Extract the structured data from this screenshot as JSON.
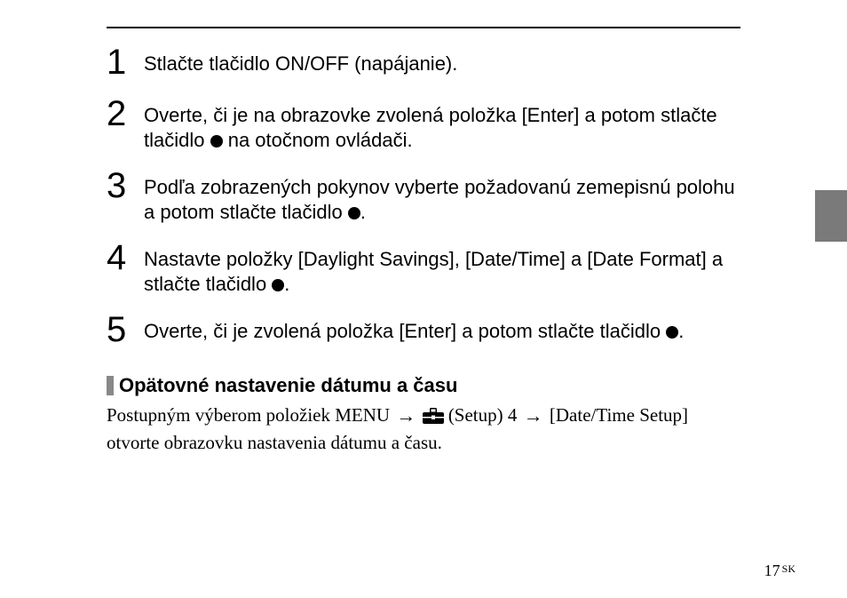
{
  "steps": [
    {
      "num": "1",
      "parts": [
        {
          "t": "text",
          "v": "Stlačte tlačidlo ON/OFF (napájanie)."
        }
      ]
    },
    {
      "num": "2",
      "parts": [
        {
          "t": "text",
          "v": "Overte, či je na obrazovke zvolená položka [Enter] a potom stlačte tlačidlo "
        },
        {
          "t": "dot"
        },
        {
          "t": "text",
          "v": " na otočnom ovládači."
        }
      ]
    },
    {
      "num": "3",
      "parts": [
        {
          "t": "text",
          "v": "Podľa zobrazených pokynov vyberte požadovanú zemepisnú polohu a potom stlačte tlačidlo "
        },
        {
          "t": "dot"
        },
        {
          "t": "text",
          "v": "."
        }
      ]
    },
    {
      "num": "4",
      "parts": [
        {
          "t": "text",
          "v": "Nastavte položky [Daylight Savings], [Date/Time] a [Date Format] a stlačte tlačidlo "
        },
        {
          "t": "dot"
        },
        {
          "t": "text",
          "v": "."
        }
      ]
    },
    {
      "num": "5",
      "parts": [
        {
          "t": "text",
          "v": "Overte, či je zvolená položka [Enter] a potom stlačte tlačidlo "
        },
        {
          "t": "dot"
        },
        {
          "t": "text",
          "v": "."
        }
      ]
    }
  ],
  "subheading": "Opätovné nastavenie dátumu a času",
  "body_parts": [
    {
      "t": "text",
      "v": "Postupným výberom položiek MENU "
    },
    {
      "t": "arrow"
    },
    {
      "t": "text",
      "v": " "
    },
    {
      "t": "toolbox"
    },
    {
      "t": "text",
      "v": " (Setup) 4 "
    },
    {
      "t": "arrow"
    },
    {
      "t": "text",
      "v": " [Date/Time Setup] otvorte obrazovku nastavenia dátumu a času."
    }
  ],
  "page_number": "17",
  "page_suffix": "SK",
  "colors": {
    "side_tab": "#7a7a7a",
    "sub_bullet": "#888888"
  }
}
